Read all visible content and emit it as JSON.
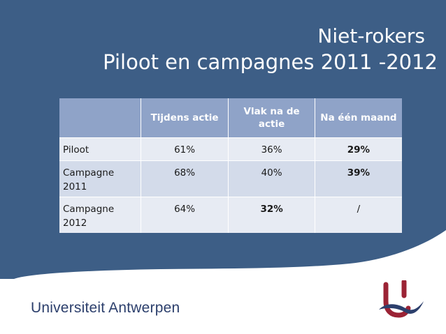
{
  "slide": {
    "title_line1": "Niet-rokers",
    "title_line2": "Piloot en campagnes 2011 -2012"
  },
  "table": {
    "headers": [
      "",
      "Tijdens actie",
      "Vlak na de actie",
      "Na één maand"
    ],
    "rows": [
      {
        "label": "Piloot",
        "values": [
          "61%",
          "36%",
          "29%"
        ],
        "bold": [
          false,
          false,
          true
        ]
      },
      {
        "label": "Campagne 2011",
        "values": [
          "68%",
          "40%",
          "39%"
        ],
        "bold": [
          false,
          false,
          true
        ]
      },
      {
        "label": "Campagne 2012",
        "values": [
          "64%",
          "32%",
          "/"
        ],
        "bold": [
          false,
          true,
          false
        ]
      }
    ]
  },
  "footer": {
    "university_name_part1": "Universiteit",
    "university_name_part2": "Antwerpen",
    "logo_icon": "uantwerpen-logo-icon"
  },
  "colors": {
    "background_blue": "#3d5e86",
    "header_blue": "#8fa3c8",
    "row_light": "#e7ebf3",
    "row_mid": "#d3dbea",
    "logo_red": "#9b2335",
    "logo_navy": "#2c3f6c"
  }
}
